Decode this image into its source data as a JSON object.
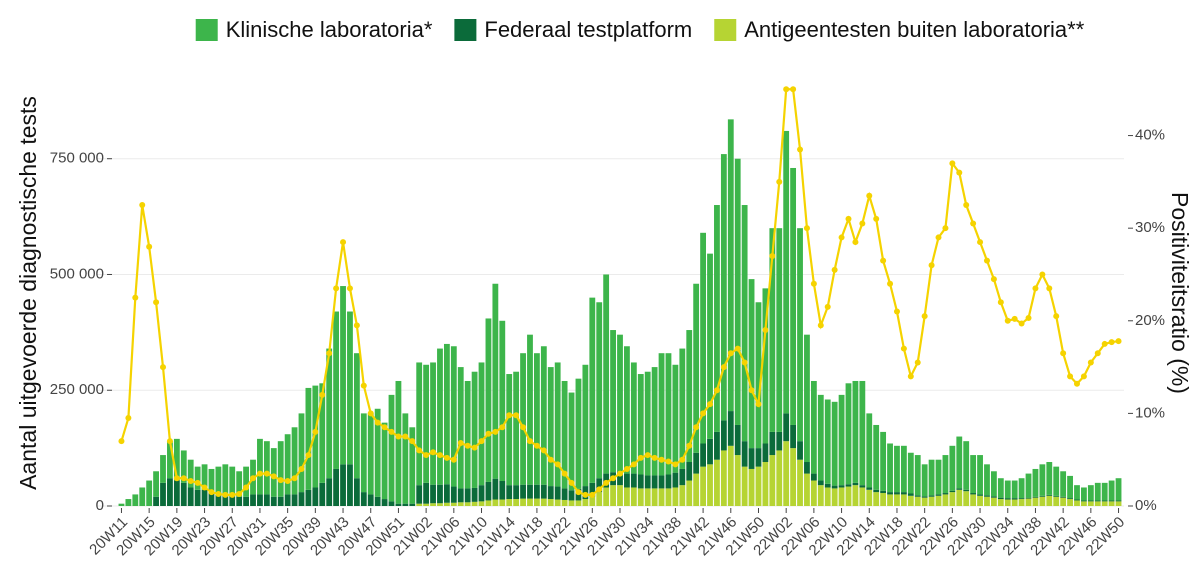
{
  "chart_data": {
    "type": "bar",
    "series": [
      {
        "name": "Klinische laboratoria*",
        "color": "#3db54b",
        "values": [
          5000,
          15000,
          25000,
          40000,
          55000,
          55000,
          60000,
          80000,
          90000,
          70000,
          60000,
          50000,
          55000,
          50000,
          55000,
          65000,
          60000,
          55000,
          65000,
          75000,
          120000,
          115000,
          105000,
          120000,
          130000,
          145000,
          170000,
          220000,
          220000,
          215000,
          280000,
          340000,
          385000,
          330000,
          270000,
          170000,
          175000,
          190000,
          165000,
          230000,
          265000,
          195000,
          165000,
          265000,
          255000,
          264000,
          294000,
          303000,
          303000,
          262000,
          232000,
          251000,
          265000,
          353000,
          421000,
          346000,
          240000,
          245000,
          284000,
          324000,
          284000,
          299000,
          257000,
          268000,
          232000,
          211000,
          238000,
          262000,
          400000,
          380000,
          430000,
          307000,
          295000,
          275000,
          240000,
          217000,
          224000,
          234000,
          264000,
          262000,
          233000,
          260000,
          285000,
          365000,
          455000,
          400000,
          490000,
          575000,
          630000,
          575000,
          510000,
          365000,
          315000,
          335000,
          440000,
          440000,
          610000,
          555000,
          460000,
          275000,
          200000,
          185000,
          182000,
          181000,
          195000,
          218000,
          220000,
          225000,
          160000,
          140000,
          127000,
          105000,
          100000,
          100000,
          88000,
          87000,
          69000,
          77000,
          75000,
          82000,
          97000,
          112000,
          105000,
          82000,
          85000,
          67000,
          54000,
          42000,
          38000,
          38000,
          43000,
          52000,
          60000,
          68000,
          71000,
          63000,
          55000,
          48000,
          31000,
          28000,
          33000,
          38000,
          38000,
          43000,
          48000
        ]
      },
      {
        "name": "Federaal testplatform",
        "color": "#0b6b3a",
        "values": [
          0,
          0,
          0,
          0,
          0,
          20000,
          50000,
          60000,
          55000,
          50000,
          40000,
          35000,
          35000,
          30000,
          30000,
          25000,
          25000,
          20000,
          20000,
          25000,
          25000,
          25000,
          20000,
          20000,
          25000,
          25000,
          30000,
          35000,
          40000,
          50000,
          60000,
          80000,
          90000,
          90000,
          60000,
          30000,
          25000,
          20000,
          15000,
          10000,
          5000,
          5000,
          5000,
          40000,
          45000,
          40000,
          40000,
          40000,
          35000,
          30000,
          30000,
          30000,
          35000,
          40000,
          45000,
          40000,
          30000,
          30000,
          30000,
          30000,
          30000,
          30000,
          28000,
          28000,
          25000,
          22000,
          25000,
          28000,
          30000,
          30000,
          30000,
          28000,
          30000,
          30000,
          30000,
          30000,
          28000,
          28000,
          28000,
          30000,
          32000,
          35000,
          40000,
          45000,
          50000,
          55000,
          60000,
          65000,
          75000,
          65000,
          55000,
          45000,
          40000,
          40000,
          50000,
          40000,
          60000,
          50000,
          40000,
          25000,
          15000,
          10000,
          8000,
          6000,
          5000,
          5000,
          5000,
          5000,
          5000,
          5000,
          5000,
          5000,
          5000,
          5000,
          5000,
          3000,
          3000,
          3000,
          3000,
          3000,
          3000,
          3000,
          3000,
          3000,
          3000,
          3000,
          3000,
          3000,
          3000,
          3000,
          2000,
          2000,
          2000,
          2000,
          2000,
          2000,
          2000,
          2000,
          2000,
          2000,
          2000,
          2000,
          2000,
          2000,
          2000
        ]
      },
      {
        "name": "Antigeentesten buiten laboratoria**",
        "color": "#b6d433",
        "values": [
          0,
          0,
          0,
          0,
          0,
          0,
          0,
          0,
          0,
          0,
          0,
          0,
          0,
          0,
          0,
          0,
          0,
          0,
          0,
          0,
          0,
          0,
          0,
          0,
          0,
          0,
          0,
          0,
          0,
          0,
          0,
          0,
          0,
          0,
          0,
          0,
          0,
          0,
          0,
          0,
          0,
          0,
          0,
          5000,
          5000,
          6000,
          6000,
          7000,
          7000,
          8000,
          8000,
          9000,
          10000,
          12000,
          14000,
          14000,
          15000,
          15000,
          16000,
          16000,
          16000,
          16000,
          15000,
          14000,
          13000,
          12000,
          12000,
          15000,
          20000,
          30000,
          40000,
          45000,
          45000,
          40000,
          40000,
          38000,
          38000,
          38000,
          38000,
          38000,
          40000,
          45000,
          55000,
          70000,
          85000,
          90000,
          100000,
          120000,
          130000,
          110000,
          85000,
          80000,
          85000,
          95000,
          110000,
          120000,
          140000,
          125000,
          100000,
          70000,
          55000,
          45000,
          40000,
          38000,
          40000,
          42000,
          45000,
          40000,
          35000,
          30000,
          28000,
          25000,
          25000,
          25000,
          22000,
          20000,
          18000,
          20000,
          22000,
          25000,
          30000,
          35000,
          32000,
          25000,
          22000,
          20000,
          18000,
          15000,
          14000,
          14000,
          15000,
          16000,
          18000,
          20000,
          22000,
          20000,
          18000,
          15000,
          12000,
          10000,
          10000,
          10000,
          10000,
          10000,
          10000
        ]
      },
      {
        "name": "Positiviteitsratio (%)",
        "color": "#f5d300",
        "axis": "y2",
        "type": "line",
        "values": [
          7,
          9.5,
          22.5,
          32.5,
          28,
          22,
          15,
          7,
          3,
          3,
          2.7,
          2.5,
          2,
          1.5,
          1.3,
          1.2,
          1.2,
          1.3,
          2,
          3,
          3.5,
          3.5,
          3.2,
          2.8,
          2.7,
          3,
          4,
          5.5,
          8,
          12,
          16.5,
          23.5,
          28.5,
          23.5,
          19.5,
          13,
          10,
          9,
          8.5,
          8,
          7.5,
          7.5,
          7,
          6,
          5.5,
          5.8,
          5.5,
          5.2,
          5,
          6.8,
          6.5,
          6.3,
          7,
          7.8,
          8,
          8.5,
          9.8,
          9.8,
          8.5,
          7,
          6.5,
          6,
          5,
          4.5,
          3.5,
          2.5,
          1.5,
          1.2,
          1.2,
          1.8,
          2.5,
          3,
          3.5,
          4,
          4.5,
          5.2,
          5.5,
          5.2,
          5,
          4.8,
          4.5,
          5,
          6.5,
          8.5,
          10,
          11,
          12.5,
          15,
          16.5,
          17,
          15.5,
          12.5,
          11,
          19,
          27,
          35,
          45,
          45,
          38.5,
          30,
          24,
          19.5,
          21.5,
          25.5,
          29,
          31,
          28.5,
          30.5,
          33.5,
          31,
          26.5,
          24,
          21,
          17,
          14,
          15.5,
          20.5,
          26,
          29,
          30,
          37,
          36,
          32.5,
          30.5,
          28.5,
          26.5,
          24.5,
          22,
          20,
          20.2,
          19.7,
          20.3,
          23.5,
          25,
          23.5,
          20.5,
          16.5,
          14,
          13.2,
          14,
          15.5,
          16.5,
          17.5,
          17.7,
          17.8
        ]
      }
    ],
    "categories": [
      "20W11",
      null,
      null,
      null,
      "20W15",
      null,
      null,
      null,
      "20W19",
      null,
      null,
      null,
      "20W23",
      null,
      null,
      null,
      "20W27",
      null,
      null,
      null,
      "20W31",
      null,
      null,
      null,
      "20W35",
      null,
      null,
      null,
      "20W39",
      null,
      null,
      null,
      "20W43",
      null,
      null,
      null,
      "20W47",
      null,
      null,
      null,
      "20W51",
      null,
      null,
      null,
      "21W02",
      null,
      null,
      null,
      "21W06",
      null,
      null,
      null,
      "21W10",
      null,
      null,
      null,
      "21W14",
      null,
      null,
      null,
      "21W18",
      null,
      null,
      null,
      "21W22",
      null,
      null,
      null,
      "21W26",
      null,
      null,
      null,
      "21W30",
      null,
      null,
      null,
      "21W34",
      null,
      null,
      null,
      "21W38",
      null,
      null,
      null,
      "21W42",
      null,
      null,
      null,
      "21W46",
      null,
      null,
      null,
      "21W50",
      null,
      null,
      null,
      "22W02",
      null,
      null,
      null,
      "22W06",
      null,
      null,
      null,
      "22W10",
      null,
      null,
      null,
      "22W14",
      null,
      null,
      null,
      "22W18",
      null,
      null,
      null,
      "22W22",
      null,
      null,
      null,
      "22W26",
      null,
      null,
      null,
      "22W30",
      null,
      null,
      null,
      "22W34",
      null,
      null,
      null,
      "22W38",
      null,
      null,
      null,
      "22W42",
      null,
      null,
      null,
      "22W46",
      null,
      null,
      null,
      "22W50"
    ],
    "y_label": "Aantal uitgevoerde diagnostische tests",
    "y2_label": "Positiviteitsratio (%)",
    "stacked": true,
    "ylim": [
      0,
      920000
    ],
    "yticks": [
      0,
      {
        "value": 250000,
        "label": "250 000"
      },
      {
        "value": 500000,
        "label": "500 000"
      },
      {
        "value": 750000,
        "label": "750 000"
      }
    ],
    "y2lim": [
      0,
      46
    ],
    "y2ticks": [
      {
        "value": 0,
        "label": "0%"
      },
      {
        "value": 10,
        "label": "10%"
      },
      {
        "value": 20,
        "label": "20%"
      },
      {
        "value": 30,
        "label": "30%"
      },
      {
        "value": 40,
        "label": "40%"
      }
    ],
    "grid": true,
    "legend": "top"
  }
}
